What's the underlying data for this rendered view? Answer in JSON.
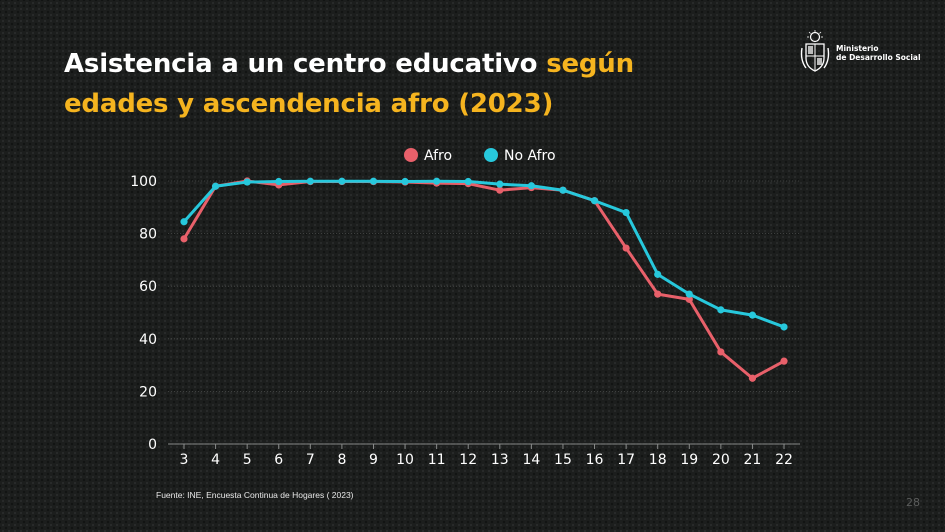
{
  "title": {
    "part1": "Asistencia a un centro educativo ",
    "part2": "según",
    "part3": "edades y ascendencia afro (2023)"
  },
  "logo": {
    "line1": "Ministerio",
    "line2": "de Desarrollo Social",
    "icon": "uruguay-coat-of-arms-icon"
  },
  "source": "Fuente: INE, Encuesta Continua de Hogares ( 2023)",
  "page_number": "28",
  "colors": {
    "afro": "#e8606a",
    "no_afro": "#27c8dc",
    "title_accent": "#f5b41f",
    "background": "#1c1e1d"
  },
  "chart_data": {
    "type": "line",
    "title": "",
    "xlabel": "",
    "ylabel": "",
    "x": [
      "3",
      "4",
      "5",
      "6",
      "7",
      "8",
      "9",
      "10",
      "11",
      "12",
      "13",
      "14",
      "15",
      "16",
      "17",
      "18",
      "19",
      "20",
      "21",
      "22"
    ],
    "ylim": [
      0,
      100
    ],
    "yticks": [
      "0",
      "20",
      "40",
      "60",
      "80",
      "100"
    ],
    "grid": true,
    "legend": "top-center",
    "series": [
      {
        "name": "Afro",
        "values": [
          78,
          98,
          100,
          98.5,
          99.8,
          99.8,
          99.8,
          99.6,
          99.2,
          99,
          96.5,
          97.5,
          96.5,
          92.5,
          74.5,
          57,
          55,
          35,
          25,
          31.5
        ]
      },
      {
        "name": "No Afro",
        "values": [
          84.5,
          98,
          99.6,
          99.8,
          99.9,
          99.9,
          99.9,
          99.8,
          99.9,
          99.8,
          98.8,
          98.2,
          96.5,
          92.5,
          88,
          64.5,
          57,
          51,
          49,
          44.5
        ]
      }
    ]
  }
}
